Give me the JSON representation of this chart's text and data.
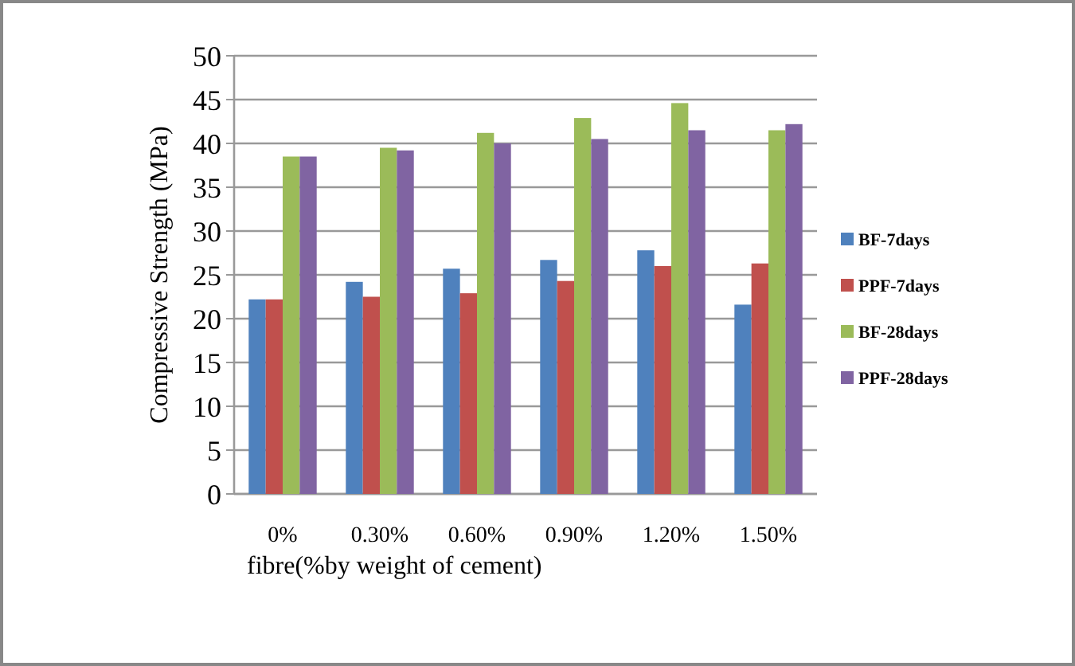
{
  "chart_data": {
    "type": "bar",
    "xlabel": "fibre(%by weight of cement)",
    "ylabel": "Compressive Strength (MPa)",
    "categories": [
      "0%",
      "0.30%",
      "0.60%",
      "0.90%",
      "1.20%",
      "1.50%"
    ],
    "series": [
      {
        "name": "BF-7days",
        "color": "#4f81bd",
        "values": [
          22.2,
          24.2,
          25.7,
          26.7,
          27.8,
          21.6
        ]
      },
      {
        "name": "PPF-7days",
        "color": "#c0504d",
        "values": [
          22.2,
          22.5,
          22.9,
          24.3,
          26,
          26.3
        ]
      },
      {
        "name": "BF-28days",
        "color": "#9bbb59",
        "values": [
          38.5,
          39.5,
          41.2,
          42.9,
          44.6,
          41.5
        ]
      },
      {
        "name": "PPF-28days",
        "color": "#8064a2",
        "values": [
          38.5,
          39.2,
          40,
          40.5,
          41.5,
          42.2
        ]
      }
    ],
    "ylim": [
      0,
      50
    ],
    "yticks": [
      0,
      5,
      10,
      15,
      20,
      25,
      30,
      35,
      40,
      45,
      50
    ],
    "grid": "y",
    "legend": "right"
  }
}
